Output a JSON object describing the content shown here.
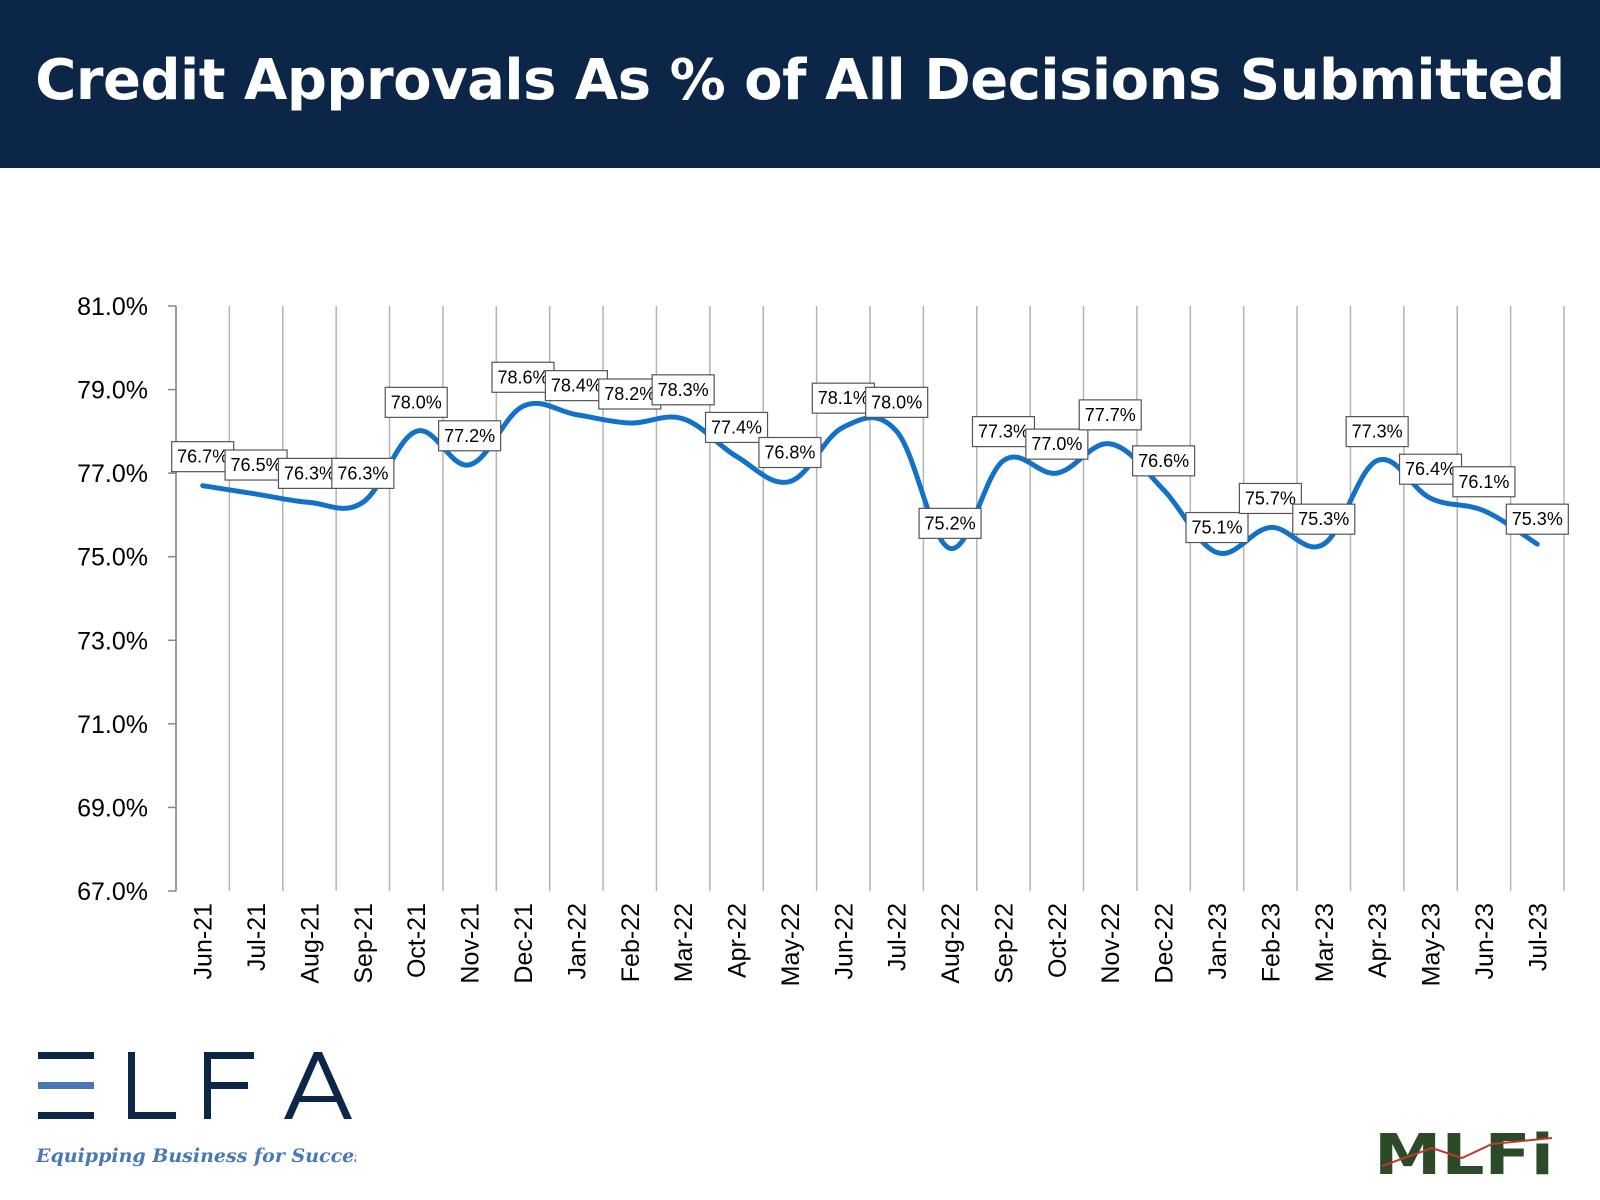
{
  "header": {
    "title": "Credit Approvals As % of All Decisions Submitted"
  },
  "colors": {
    "banner": "#0b2647",
    "series_line": "#1372c7",
    "grid": "#b4b4b4",
    "elfa_navy": "#0b2647",
    "elfa_blue": "#4a78b5",
    "mlfi_green": "#2c4a28"
  },
  "chart_data": {
    "type": "line",
    "title": "",
    "xlabel": "",
    "ylabel": "",
    "ylim": [
      67.0,
      81.0
    ],
    "y_ticks": [
      "81.0%",
      "79.0%",
      "77.0%",
      "75.0%",
      "73.0%",
      "71.0%",
      "69.0%",
      "67.0%"
    ],
    "y_tick_values": [
      81,
      79,
      77,
      75,
      73,
      71,
      69,
      67
    ],
    "categories": [
      "Jun-21",
      "Jul-21",
      "Aug-21",
      "Sep-21",
      "Oct-21",
      "Nov-21",
      "Dec-21",
      "Jan-22",
      "Feb-22",
      "Mar-22",
      "Apr-22",
      "May-22",
      "Jun-22",
      "Jul-22",
      "Aug-22",
      "Sep-22",
      "Oct-22",
      "Nov-22",
      "Dec-22",
      "Jan-23",
      "Feb-23",
      "Mar-23",
      "Apr-23",
      "May-23",
      "Jun-23",
      "Jul-23"
    ],
    "values": [
      76.7,
      76.5,
      76.3,
      76.3,
      78.0,
      77.2,
      78.6,
      78.4,
      78.2,
      78.3,
      77.4,
      76.8,
      78.1,
      78.0,
      75.2,
      77.3,
      77.0,
      77.7,
      76.6,
      75.1,
      75.7,
      75.3,
      77.3,
      76.4,
      76.1,
      75.3
    ],
    "data_labels": [
      "76.7%",
      "76.5%",
      "76.3%",
      "76.3%",
      "78.0%",
      "77.2%",
      "78.6%",
      "78.4%",
      "78.2%",
      "78.3%",
      "77.4%",
      "76.8%",
      "78.1%",
      "78.0%",
      "75.2%",
      "77.3%",
      "77.0%",
      "77.7%",
      "76.6%",
      "75.1%",
      "75.7%",
      "75.3%",
      "77.3%",
      "76.4%",
      "76.1%",
      "75.3%"
    ],
    "grid": "vertical",
    "legend": "none"
  },
  "logos": {
    "elfa": {
      "wordmark": "ELFA",
      "tagline": "Equipping Business for Success"
    },
    "mlfi": {
      "wordmark": "MLFi"
    }
  }
}
